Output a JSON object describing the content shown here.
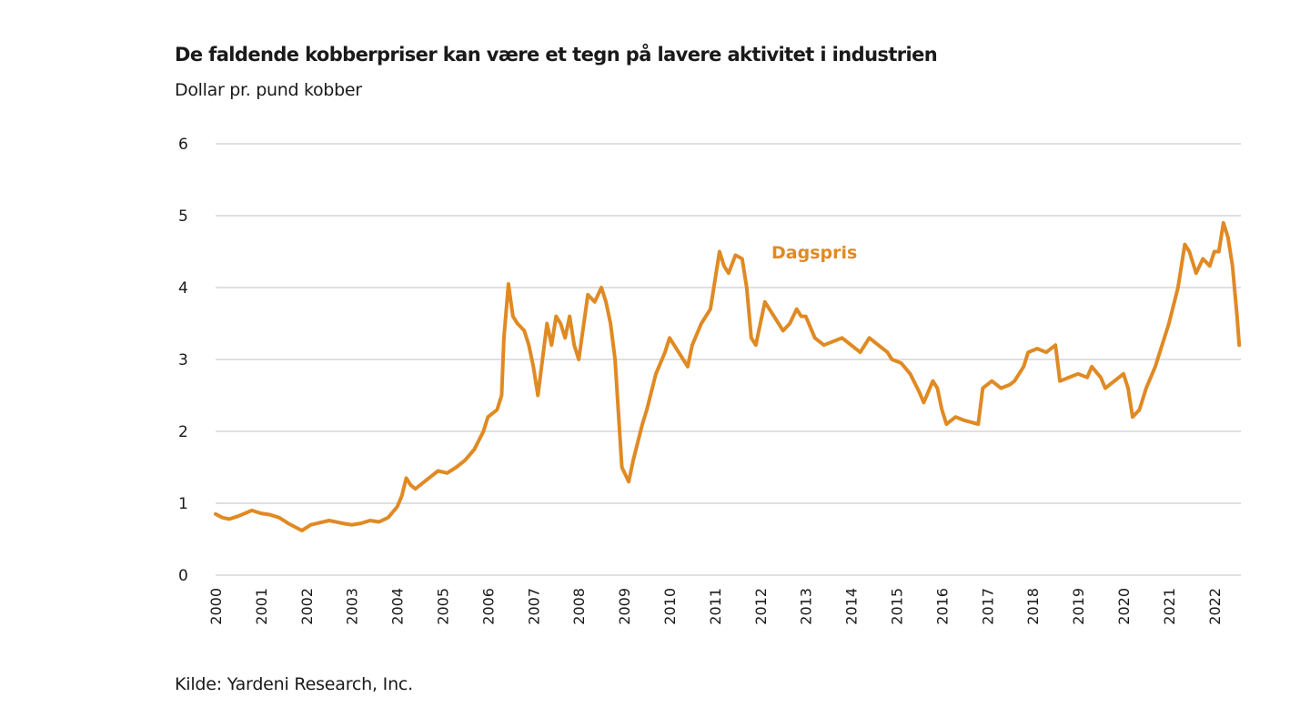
{
  "chart_data": {
    "type": "line",
    "title": "De faldende kobberpriser kan være et tegn på lavere aktivitet i industrien",
    "subtitle": "Dollar pr. pund kobber",
    "source": "Kilde:  Yardeni Research, Inc.",
    "xlabel": "",
    "ylabel": "Dollar pr. pund kobber",
    "ylim": [
      0,
      6
    ],
    "xlim": [
      2000,
      2022.6
    ],
    "yticks": [
      "0",
      "1",
      "2",
      "3",
      "4",
      "5",
      "6"
    ],
    "xticks": [
      "2000",
      "2001",
      "2002",
      "2003",
      "2004",
      "2005",
      "2006",
      "2007",
      "2008",
      "2009",
      "2010",
      "2011",
      "2012",
      "2013",
      "2014",
      "2015",
      "2016",
      "2017",
      "2018",
      "2019",
      "2020",
      "2021",
      "2022"
    ],
    "grid": true,
    "line_color": "#E08A24",
    "series": [
      {
        "name": "Dagspris",
        "x": [
          2000.0,
          2000.15,
          2000.3,
          2000.5,
          2000.8,
          2001.0,
          2001.2,
          2001.4,
          2001.6,
          2001.9,
          2002.1,
          2002.3,
          2002.5,
          2002.8,
          2003.0,
          2003.2,
          2003.4,
          2003.6,
          2003.8,
          2004.0,
          2004.1,
          2004.2,
          2004.3,
          2004.4,
          2004.6,
          2004.9,
          2005.1,
          2005.3,
          2005.5,
          2005.7,
          2005.9,
          2006.0,
          2006.2,
          2006.3,
          2006.35,
          2006.45,
          2006.55,
          2006.65,
          2006.8,
          2006.9,
          2007.0,
          2007.1,
          2007.2,
          2007.3,
          2007.4,
          2007.5,
          2007.6,
          2007.7,
          2007.8,
          2007.9,
          2008.0,
          2008.2,
          2008.35,
          2008.5,
          2008.6,
          2008.7,
          2008.8,
          2008.9,
          2008.95,
          2009.1,
          2009.2,
          2009.4,
          2009.5,
          2009.7,
          2009.9,
          2010.0,
          2010.2,
          2010.4,
          2010.5,
          2010.7,
          2010.8,
          2010.9,
          2011.1,
          2011.2,
          2011.3,
          2011.45,
          2011.6,
          2011.7,
          2011.8,
          2011.9,
          2012.0,
          2012.1,
          2012.3,
          2012.5,
          2012.65,
          2012.8,
          2012.9,
          2013.0,
          2013.2,
          2013.4,
          2013.6,
          2013.8,
          2014.0,
          2014.2,
          2014.4,
          2014.6,
          2014.8,
          2014.9,
          2015.1,
          2015.3,
          2015.5,
          2015.6,
          2015.8,
          2015.9,
          2016.0,
          2016.1,
          2016.3,
          2016.5,
          2016.8,
          2016.9,
          2017.1,
          2017.3,
          2017.5,
          2017.6,
          2017.8,
          2017.9,
          2018.1,
          2018.3,
          2018.5,
          2018.6,
          2018.8,
          2019.0,
          2019.2,
          2019.3,
          2019.5,
          2019.6,
          2019.8,
          2020.0,
          2020.1,
          2020.2,
          2020.35,
          2020.5,
          2020.7,
          2020.9,
          2021.0,
          2021.2,
          2021.35,
          2021.45,
          2021.6,
          2021.75,
          2021.9,
          2022.0,
          2022.1,
          2022.2,
          2022.3,
          2022.4,
          2022.5,
          2022.55
        ],
        "values": [
          0.85,
          0.8,
          0.78,
          0.82,
          0.9,
          0.86,
          0.84,
          0.8,
          0.72,
          0.62,
          0.7,
          0.73,
          0.76,
          0.72,
          0.7,
          0.72,
          0.76,
          0.74,
          0.8,
          0.95,
          1.1,
          1.35,
          1.25,
          1.2,
          1.3,
          1.45,
          1.42,
          1.5,
          1.6,
          1.75,
          2.0,
          2.2,
          2.3,
          2.5,
          3.3,
          4.05,
          3.6,
          3.5,
          3.4,
          3.2,
          2.9,
          2.5,
          3.0,
          3.5,
          3.2,
          3.6,
          3.5,
          3.3,
          3.6,
          3.2,
          3.0,
          3.9,
          3.8,
          4.0,
          3.8,
          3.5,
          3.0,
          2.0,
          1.5,
          1.3,
          1.6,
          2.1,
          2.3,
          2.8,
          3.1,
          3.3,
          3.1,
          2.9,
          3.2,
          3.5,
          3.6,
          3.7,
          4.5,
          4.3,
          4.2,
          4.45,
          4.4,
          4.0,
          3.3,
          3.2,
          3.5,
          3.8,
          3.6,
          3.4,
          3.5,
          3.7,
          3.6,
          3.6,
          3.3,
          3.2,
          3.25,
          3.3,
          3.2,
          3.1,
          3.3,
          3.2,
          3.1,
          3.0,
          2.95,
          2.8,
          2.55,
          2.4,
          2.7,
          2.6,
          2.3,
          2.1,
          2.2,
          2.15,
          2.1,
          2.6,
          2.7,
          2.6,
          2.65,
          2.7,
          2.9,
          3.1,
          3.15,
          3.1,
          3.2,
          2.7,
          2.75,
          2.8,
          2.75,
          2.9,
          2.75,
          2.6,
          2.7,
          2.8,
          2.6,
          2.2,
          2.3,
          2.6,
          2.9,
          3.3,
          3.5,
          4.0,
          4.6,
          4.5,
          4.2,
          4.4,
          4.3,
          4.5,
          4.5,
          4.9,
          4.7,
          4.3,
          3.6,
          3.2
        ]
      }
    ],
    "legend": {
      "label": "Dagspris",
      "placement": "inline-top-center"
    }
  }
}
